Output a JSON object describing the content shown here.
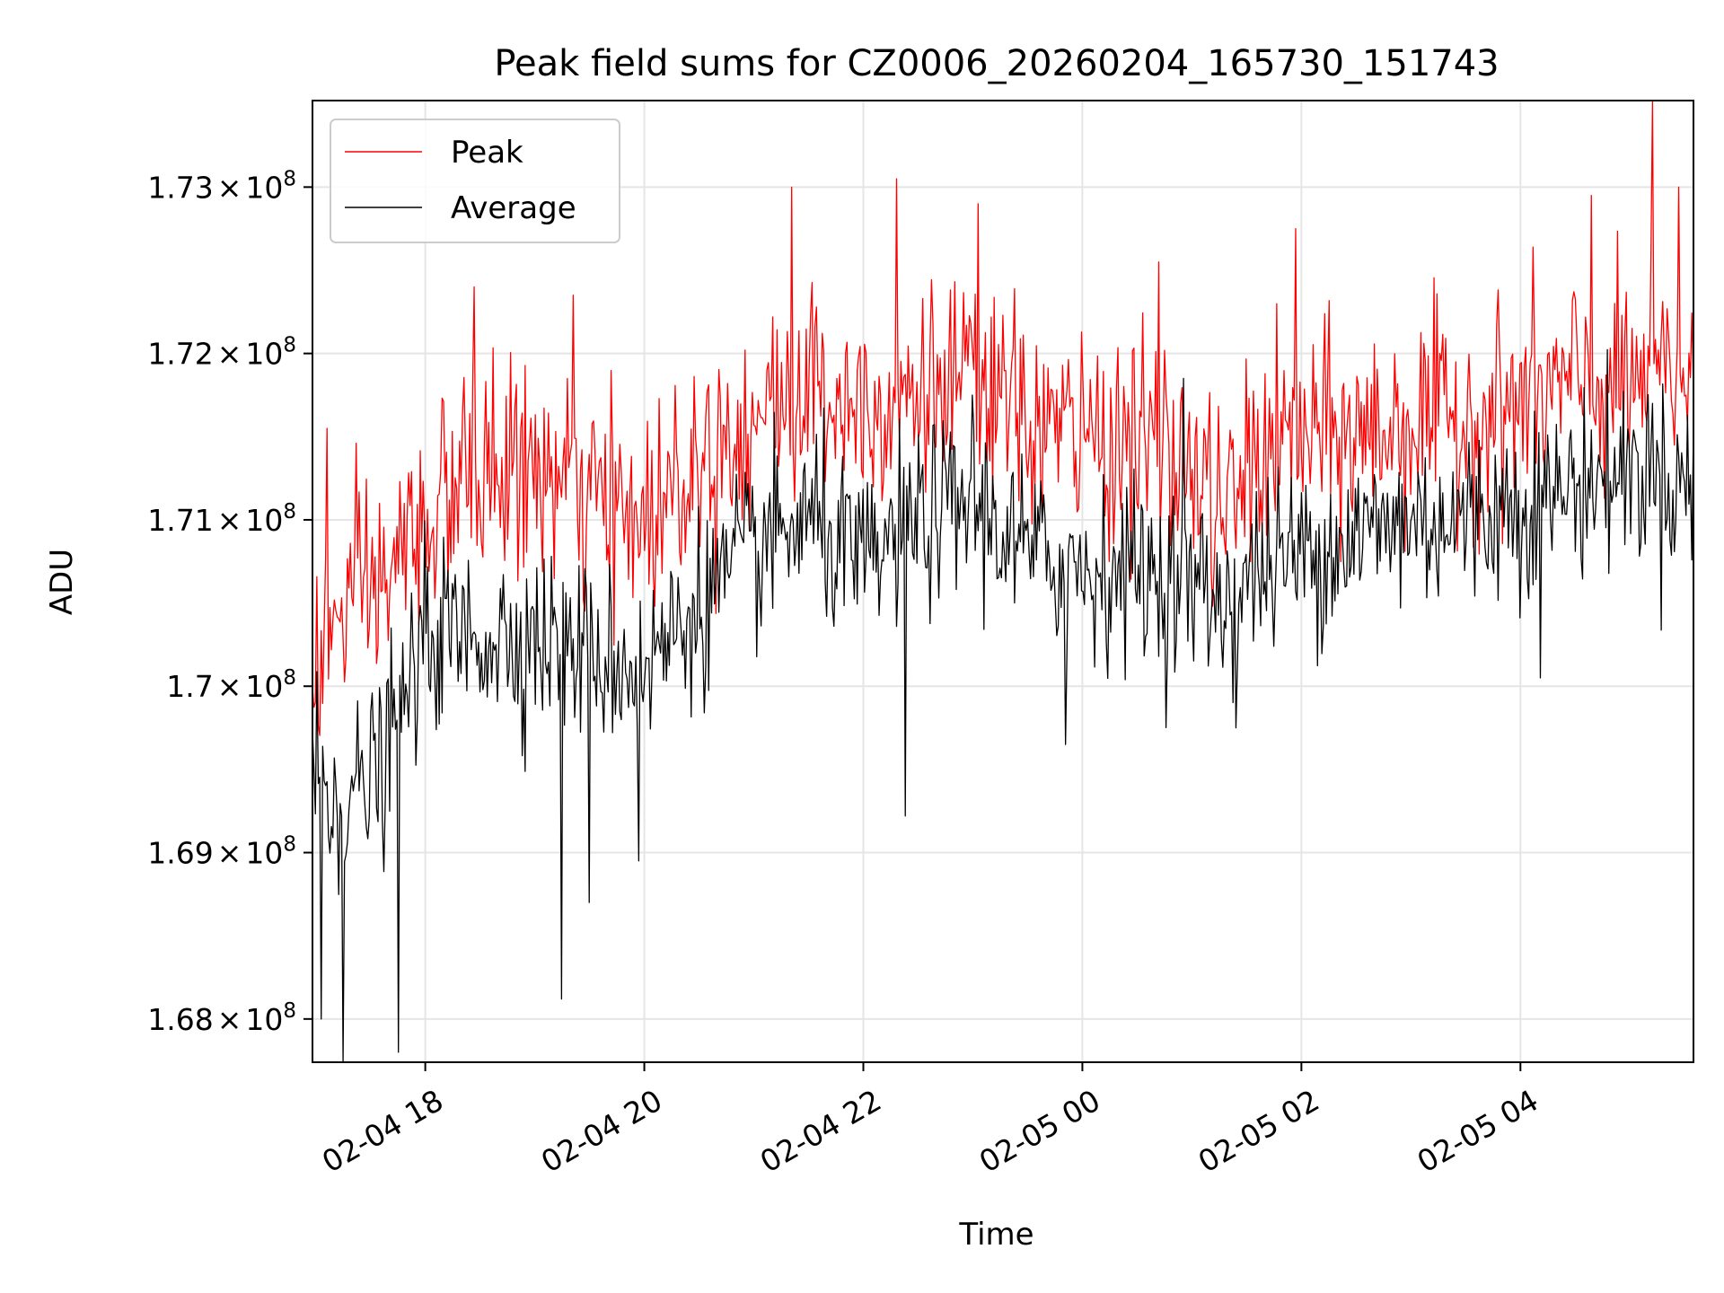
{
  "chart_data": {
    "type": "line",
    "title": "Peak field sums for CZ0006_20260204_165730_151743",
    "xlabel": "Time",
    "ylabel": "ADU",
    "grid": true,
    "legend_position": "top-left",
    "colors": {
      "Peak": "#ff0000",
      "Average": "#000000",
      "grid": "#e5e5e5",
      "axes": "#000000"
    },
    "x_unit": "hours since 2026-02-04 00:00",
    "xlim": [
      16.97,
      29.58
    ],
    "ylim": [
      167.74,
      173.52
    ],
    "y_scale_label": "x 10^6 ADU",
    "x_ticks": [
      {
        "value": 18,
        "label": "02-04 18"
      },
      {
        "value": 20,
        "label": "02-04 20"
      },
      {
        "value": 22,
        "label": "02-04 22"
      },
      {
        "value": 24,
        "label": "02-05 00"
      },
      {
        "value": 26,
        "label": "02-05 02"
      },
      {
        "value": 28,
        "label": "02-05 04"
      }
    ],
    "y_ticks": [
      {
        "value": 168,
        "mantissa": "1.68"
      },
      {
        "value": 169,
        "mantissa": "1.69"
      },
      {
        "value": 170,
        "mantissa": "1.7"
      },
      {
        "value": 171,
        "mantissa": "1.71"
      },
      {
        "value": 172,
        "mantissa": "1.72"
      },
      {
        "value": 173,
        "mantissa": "1.73"
      }
    ],
    "y_tick_times": "×",
    "y_tick_base": "10",
    "y_tick_exponent": "8",
    "sample_interval_hours": 0.0133,
    "series": [
      {
        "name": "Peak",
        "baseline": {
          "x": [
            16.97,
            17.3,
            17.6,
            18.0,
            18.5,
            19.0,
            19.5,
            20.0,
            20.5,
            21.0,
            21.5,
            22.0,
            22.5,
            23.0,
            23.5,
            24.0,
            24.5,
            25.0,
            25.3,
            25.6,
            26.0,
            26.5,
            27.0,
            27.5,
            28.0,
            28.5,
            29.0,
            29.58
          ],
          "y": [
            170.1,
            170.5,
            170.6,
            171.0,
            171.3,
            171.3,
            171.1,
            171.0,
            171.4,
            171.6,
            171.8,
            171.7,
            171.8,
            171.8,
            171.6,
            171.5,
            171.5,
            171.3,
            171.0,
            171.4,
            171.5,
            171.5,
            171.6,
            171.6,
            171.7,
            171.8,
            171.8,
            171.9
          ]
        },
        "noise": 0.42,
        "spikes": [
          {
            "x": 17.1,
            "y": 171.55
          },
          {
            "x": 18.45,
            "y": 172.4
          },
          {
            "x": 19.35,
            "y": 172.35
          },
          {
            "x": 21.35,
            "y": 173.0
          },
          {
            "x": 22.3,
            "y": 173.05
          },
          {
            "x": 23.05,
            "y": 172.9
          },
          {
            "x": 24.7,
            "y": 172.55
          },
          {
            "x": 25.95,
            "y": 172.75
          },
          {
            "x": 28.65,
            "y": 172.95
          },
          {
            "x": 29.2,
            "y": 173.52
          },
          {
            "x": 29.45,
            "y": 173.0
          }
        ]
      },
      {
        "name": "Average",
        "baseline": {
          "x": [
            16.97,
            17.3,
            17.6,
            18.0,
            18.5,
            19.0,
            19.5,
            20.0,
            20.5,
            21.0,
            21.5,
            22.0,
            22.5,
            23.0,
            23.5,
            24.0,
            24.5,
            25.0,
            25.3,
            25.6,
            26.0,
            26.5,
            27.0,
            27.5,
            28.0,
            28.5,
            29.0,
            29.58
          ],
          "y": [
            169.5,
            169.3,
            169.5,
            170.3,
            170.3,
            170.3,
            170.2,
            170.1,
            170.5,
            170.8,
            171.0,
            170.7,
            171.0,
            171.1,
            170.8,
            170.7,
            170.7,
            170.6,
            170.5,
            170.7,
            170.8,
            170.9,
            171.0,
            171.0,
            171.1,
            171.2,
            171.3,
            171.2
          ]
        },
        "noise": 0.36,
        "spikes": [
          {
            "x": 17.25,
            "y": 167.74
          },
          {
            "x": 17.05,
            "y": 168.0
          },
          {
            "x": 17.75,
            "y": 167.8
          },
          {
            "x": 19.25,
            "y": 168.12
          },
          {
            "x": 19.5,
            "y": 168.7
          },
          {
            "x": 19.95,
            "y": 168.95
          },
          {
            "x": 22.38,
            "y": 169.22
          },
          {
            "x": 23.85,
            "y": 169.65
          },
          {
            "x": 25.4,
            "y": 169.75
          },
          {
            "x": 28.18,
            "y": 170.05
          },
          {
            "x": 23.0,
            "y": 171.75
          },
          {
            "x": 24.93,
            "y": 171.85
          },
          {
            "x": 29.2,
            "y": 171.7
          }
        ]
      }
    ]
  }
}
